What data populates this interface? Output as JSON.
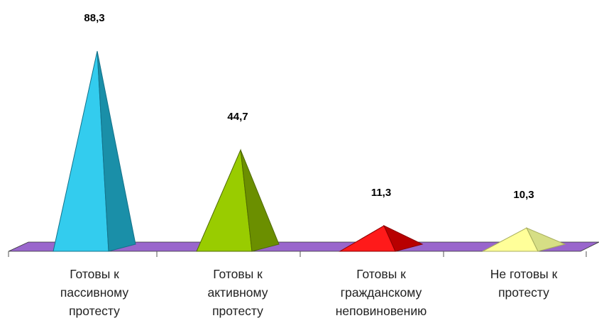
{
  "chart_data": {
    "type": "bar",
    "style": "3d-pyramid",
    "title": "",
    "xlabel": "",
    "ylabel": "",
    "ylim": [
      0,
      100
    ],
    "grid": false,
    "legend": "none",
    "floor_color": "#9966CC",
    "categories": [
      "Готовы к пассивному протесту",
      "Готовы к активному протесту",
      "Готовы к гражданскому неповиновению",
      "Не готовы к протесту"
    ],
    "category_lines": [
      [
        "Готовы к",
        "пассивному",
        "протесту"
      ],
      [
        "Готовы к",
        "активному",
        "протесту"
      ],
      [
        "Готовы к",
        "гражданскому",
        "неповиновению"
      ],
      [
        "Не готовы к",
        "протесту"
      ]
    ],
    "values": [
      88.3,
      44.7,
      11.3,
      10.3
    ],
    "value_labels": [
      "88,3",
      "44,7",
      "11,3",
      "10,3"
    ],
    "colors": [
      {
        "front": "#33CCEE",
        "side": "#1A8FA8",
        "edge": "#14728A"
      },
      {
        "front": "#99CC00",
        "side": "#6B8F00",
        "edge": "#4F6A00"
      },
      {
        "front": "#FF1A1A",
        "side": "#B80000",
        "edge": "#8A0000"
      },
      {
        "front": "#FFFF99",
        "side": "#D6DE85",
        "edge": "#A8AE5E"
      }
    ]
  }
}
